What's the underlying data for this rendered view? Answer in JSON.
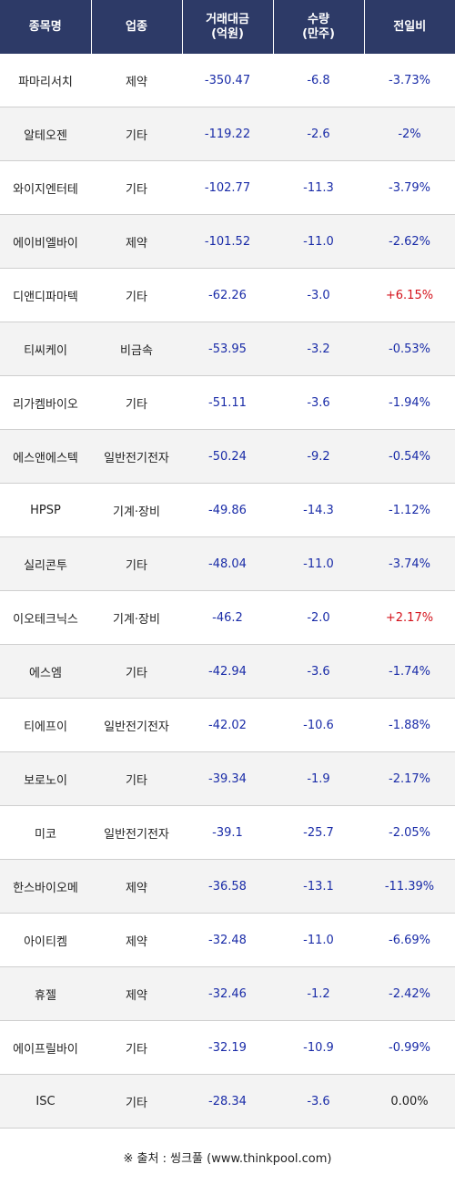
{
  "headers": [
    {
      "line1": "종목명",
      "line2": ""
    },
    {
      "line1": "업종",
      "line2": ""
    },
    {
      "line1": "거래대금",
      "line2": "(억원)"
    },
    {
      "line1": "수량",
      "line2": "(만주)"
    },
    {
      "line1": "전일비",
      "line2": ""
    }
  ],
  "rows": [
    {
      "name": "파마리서치",
      "sector": "제약",
      "amount": "-350.47",
      "qty": "-6.8",
      "change": "-3.73%",
      "dir": "down"
    },
    {
      "name": "알테오젠",
      "sector": "기타",
      "amount": "-119.22",
      "qty": "-2.6",
      "change": "-2%",
      "dir": "down"
    },
    {
      "name": "와이지엔터테",
      "sector": "기타",
      "amount": "-102.77",
      "qty": "-11.3",
      "change": "-3.79%",
      "dir": "down"
    },
    {
      "name": "에이비엘바이",
      "sector": "제약",
      "amount": "-101.52",
      "qty": "-11.0",
      "change": "-2.62%",
      "dir": "down"
    },
    {
      "name": "디앤디파마텍",
      "sector": "기타",
      "amount": "-62.26",
      "qty": "-3.0",
      "change": "+6.15%",
      "dir": "up"
    },
    {
      "name": "티씨케이",
      "sector": "비금속",
      "amount": "-53.95",
      "qty": "-3.2",
      "change": "-0.53%",
      "dir": "down"
    },
    {
      "name": "리가켐바이오",
      "sector": "기타",
      "amount": "-51.11",
      "qty": "-3.6",
      "change": "-1.94%",
      "dir": "down"
    },
    {
      "name": "에스앤에스텍",
      "sector": "일반전기전자",
      "amount": "-50.24",
      "qty": "-9.2",
      "change": "-0.54%",
      "dir": "down"
    },
    {
      "name": "HPSP",
      "sector": "기계·장비",
      "amount": "-49.86",
      "qty": "-14.3",
      "change": "-1.12%",
      "dir": "down"
    },
    {
      "name": "실리콘투",
      "sector": "기타",
      "amount": "-48.04",
      "qty": "-11.0",
      "change": "-3.74%",
      "dir": "down"
    },
    {
      "name": "이오테크닉스",
      "sector": "기계·장비",
      "amount": "-46.2",
      "qty": "-2.0",
      "change": "+2.17%",
      "dir": "up"
    },
    {
      "name": "에스엠",
      "sector": "기타",
      "amount": "-42.94",
      "qty": "-3.6",
      "change": "-1.74%",
      "dir": "down"
    },
    {
      "name": "티에프이",
      "sector": "일반전기전자",
      "amount": "-42.02",
      "qty": "-10.6",
      "change": "-1.88%",
      "dir": "down"
    },
    {
      "name": "보로노이",
      "sector": "기타",
      "amount": "-39.34",
      "qty": "-1.9",
      "change": "-2.17%",
      "dir": "down"
    },
    {
      "name": "미코",
      "sector": "일반전기전자",
      "amount": "-39.1",
      "qty": "-25.7",
      "change": "-2.05%",
      "dir": "down"
    },
    {
      "name": "한스바이오메",
      "sector": "제약",
      "amount": "-36.58",
      "qty": "-13.1",
      "change": "-11.39%",
      "dir": "down"
    },
    {
      "name": "아이티켐",
      "sector": "제약",
      "amount": "-32.48",
      "qty": "-11.0",
      "change": "-6.69%",
      "dir": "down"
    },
    {
      "name": "휴젤",
      "sector": "제약",
      "amount": "-32.46",
      "qty": "-1.2",
      "change": "-2.42%",
      "dir": "down"
    },
    {
      "name": "에이프릴바이",
      "sector": "기타",
      "amount": "-32.19",
      "qty": "-10.9",
      "change": "-0.99%",
      "dir": "down"
    },
    {
      "name": "ISC",
      "sector": "기타",
      "amount": "-28.34",
      "qty": "-3.6",
      "change": "0.00%",
      "dir": "flat"
    }
  ],
  "source": "※ 출처 : 씽크풀 (www.thinkpool.com)",
  "colors": {
    "header_bg": "#2d3a67",
    "down": "#1a2ca8",
    "up": "#d4121b",
    "flat": "#222222",
    "stripe": "#f3f3f3"
  }
}
